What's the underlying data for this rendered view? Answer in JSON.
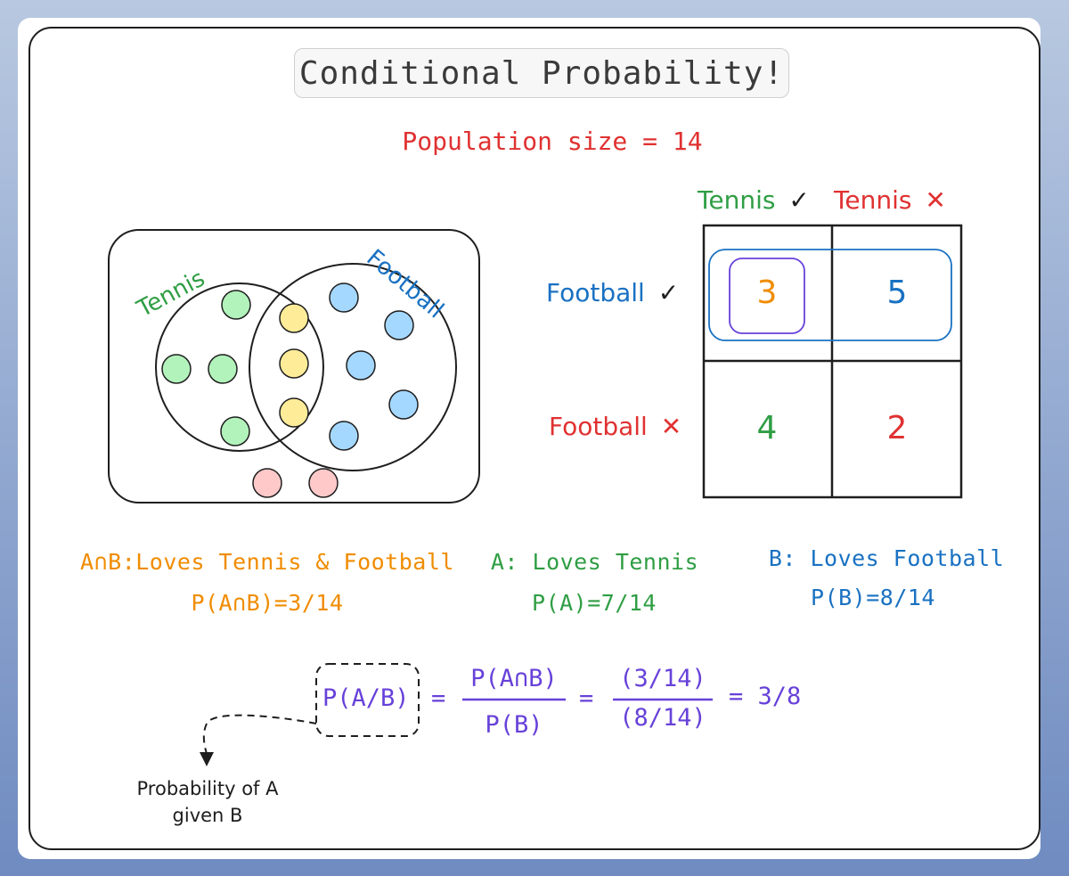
{
  "title": "Conditional Probability!",
  "population": "Population size = 14",
  "venn": {
    "label_a": "Tennis",
    "label_b": "Football",
    "colors": {
      "tennis_only": "#b2f2bb",
      "both": "#ffec99",
      "football_only": "#a5d8ff",
      "neither": "#ffc9c9"
    },
    "counts": {
      "tennis_only": 4,
      "both": 3,
      "football_only": 5,
      "neither": 2
    }
  },
  "table": {
    "col_headers": [
      {
        "text": "Tennis",
        "mark": "✓"
      },
      {
        "text": "Tennis",
        "mark": "✕"
      }
    ],
    "row_headers": [
      {
        "text": "Football",
        "mark": "✓"
      },
      {
        "text": "Football",
        "mark": "✕"
      }
    ],
    "cells": [
      [
        "3",
        "5"
      ],
      [
        "4",
        "2"
      ]
    ]
  },
  "definitions": {
    "ab_title": "A∩B:Loves Tennis & Football",
    "ab_prob": "P(A∩B)=3/14",
    "a_title": "A: Loves Tennis",
    "a_prob": "P(A)=7/14",
    "b_title": "B: Loves Football",
    "b_prob": "P(B)=8/14"
  },
  "formula": {
    "lhs": "P(A/B)",
    "eq1": "=",
    "frac1_num": "P(A∩B)",
    "frac1_den": "P(B)",
    "eq2": "=",
    "frac2_num": "(3/14)",
    "frac2_den": "(8/14)",
    "result": "= 3/8"
  },
  "annotation": {
    "line1": "Probability of A",
    "line2": "given B"
  }
}
